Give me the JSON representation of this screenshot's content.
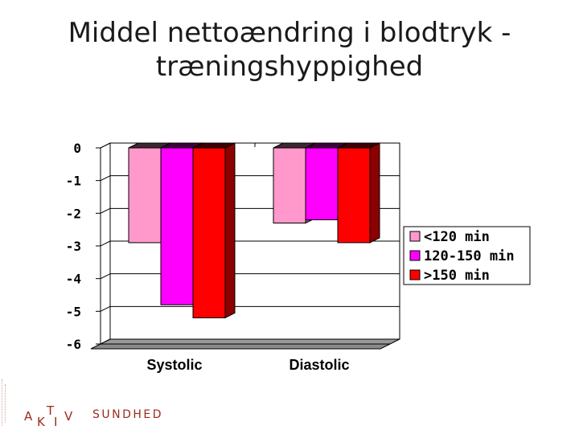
{
  "title_lines": [
    "Middel nettoændring i blodtryk -",
    "træningshyppighed"
  ],
  "chart_data": {
    "type": "bar",
    "style": "3d",
    "categories": [
      "Systolic",
      "Diastolic"
    ],
    "series": [
      {
        "name": "<120 min",
        "values": [
          -2.9,
          -2.3
        ],
        "color": "#ff99cc"
      },
      {
        "name": "120-150 min",
        "values": [
          -4.8,
          -2.2
        ],
        "color": "#ff00ff"
      },
      {
        "name": ">150 min",
        "values": [
          -5.2,
          -2.9
        ],
        "color": "#ff0000"
      }
    ],
    "ylim": [
      -6,
      0
    ],
    "yticks": [
      0,
      -1,
      -2,
      -3,
      -4,
      -5,
      -6
    ],
    "ytick_labels": [
      "0",
      "-1",
      "-2",
      "-3",
      "-4",
      "-5",
      "-6"
    ],
    "grid": true,
    "legend": "right"
  },
  "logo": {
    "letters": [
      "A",
      "K",
      "T",
      "I",
      "V"
    ],
    "word": "SUNDHED"
  }
}
